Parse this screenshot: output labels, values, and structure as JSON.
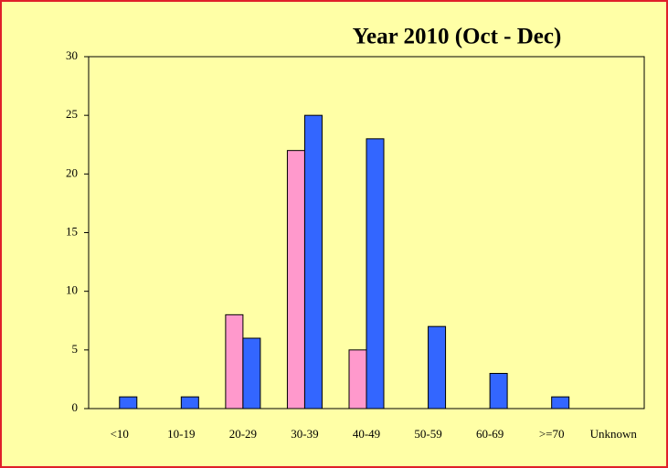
{
  "chart_data": {
    "type": "bar",
    "title": "Year 2010 (Oct - Dec)",
    "categories": [
      "<10",
      "10-19",
      "20-29",
      "30-39",
      "40-49",
      "50-59",
      "60-69",
      ">=70",
      "Unknown"
    ],
    "series": [
      {
        "color": "#ff99cc",
        "values": [
          0,
          0,
          8,
          22,
          5,
          0,
          0,
          0,
          0
        ]
      },
      {
        "color": "#3366ff",
        "values": [
          1,
          1,
          6,
          25,
          23,
          7,
          3,
          1,
          0
        ]
      }
    ],
    "ylim": [
      0,
      30
    ],
    "yticks": [
      0,
      5,
      10,
      15,
      20,
      25,
      30
    ],
    "grid": false
  }
}
